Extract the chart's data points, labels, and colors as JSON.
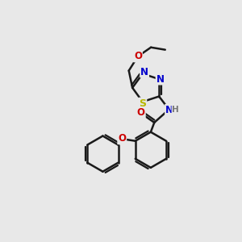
{
  "bg_color": "#e8e8e8",
  "bond_color": "#1a1a1a",
  "bond_width": 1.8,
  "atom_colors": {
    "N": "#0000cc",
    "O": "#cc0000",
    "S": "#b8b800",
    "H": "#777777",
    "C": "#1a1a1a"
  },
  "font_size": 8.5,
  "figsize": [
    3.0,
    3.0
  ],
  "dpi": 100
}
